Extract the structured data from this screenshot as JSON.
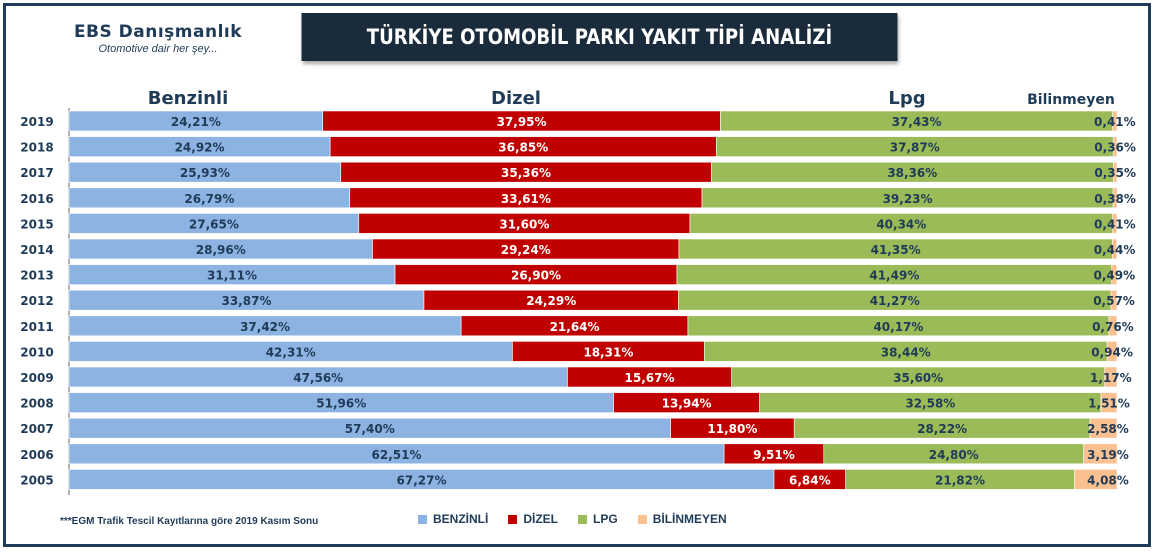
{
  "header": {
    "logo_name": "EBS Danışmanlık",
    "logo_tagline": "Otomotive dair her şey...",
    "title": "TÜRKİYE OTOMOBİL PARKI YAKIT TİPİ ANALİZİ"
  },
  "footnote": "***EGM Trafik Tescil Kayıtlarına göre 2019 Kasım Sonu",
  "colors": {
    "benzinli": "#8db3e2",
    "dizel": "#c00000",
    "lpg": "#9bbb59",
    "bilinmeyen": "#fac090",
    "title_bg": "#1a2b3c",
    "text": "#1f3b57"
  },
  "legend": [
    "BENZİNLİ",
    "DİZEL",
    "LPG",
    "BİLİNMEYEN"
  ],
  "chart_data": {
    "type": "bar",
    "orientation": "horizontal",
    "stacked": "100%",
    "title": "TÜRKİYE OTOMOBİL PARKI YAKIT TİPİ ANALİZİ",
    "column_headers": [
      "Benzinli",
      "Dizel",
      "Lpg",
      "Bilinmeyen"
    ],
    "categories": [
      "2019",
      "2018",
      "2017",
      "2016",
      "2015",
      "2014",
      "2013",
      "2012",
      "2011",
      "2010",
      "2009",
      "2008",
      "2007",
      "2006",
      "2005"
    ],
    "series": [
      {
        "name": "BENZİNLİ",
        "values": [
          24.21,
          24.92,
          25.93,
          26.79,
          27.65,
          28.96,
          31.11,
          33.87,
          37.42,
          42.31,
          47.56,
          51.96,
          57.4,
          62.51,
          67.27
        ],
        "labels": [
          "24,21%",
          "24,92%",
          "25,93%",
          "26,79%",
          "27,65%",
          "28,96%",
          "31,11%",
          "33,87%",
          "37,42%",
          "42,31%",
          "47,56%",
          "51,96%",
          "57,40%",
          "62,51%",
          "67,27%"
        ]
      },
      {
        "name": "DİZEL",
        "values": [
          37.95,
          36.85,
          35.36,
          33.61,
          31.6,
          29.24,
          26.9,
          24.29,
          21.64,
          18.31,
          15.67,
          13.94,
          11.8,
          9.51,
          6.84
        ],
        "labels": [
          "37,95%",
          "36,85%",
          "35,36%",
          "33,61%",
          "31,60%",
          "29,24%",
          "26,90%",
          "24,29%",
          "21,64%",
          "18,31%",
          "15,67%",
          "13,94%",
          "11,80%",
          "9,51%",
          "6,84%"
        ]
      },
      {
        "name": "LPG",
        "values": [
          37.43,
          37.87,
          38.36,
          39.23,
          40.34,
          41.35,
          41.49,
          41.27,
          40.17,
          38.44,
          35.6,
          32.58,
          28.22,
          24.8,
          21.82
        ],
        "labels": [
          "37,43%",
          "37,87%",
          "38,36%",
          "39,23%",
          "40,34%",
          "41,35%",
          "41,49%",
          "41,27%",
          "40,17%",
          "38,44%",
          "35,60%",
          "32,58%",
          "28,22%",
          "24,80%",
          "21,82%"
        ]
      },
      {
        "name": "BİLİNMEYEN",
        "values": [
          0.41,
          0.36,
          0.35,
          0.38,
          0.41,
          0.44,
          0.49,
          0.57,
          0.76,
          0.94,
          1.17,
          1.51,
          2.58,
          3.19,
          4.08
        ],
        "labels": [
          "0,41%",
          "0,36%",
          "0,35%",
          "0,38%",
          "0,41%",
          "0,44%",
          "0,49%",
          "0,57%",
          "0,76%",
          "0,94%",
          "1,17%",
          "1,51%",
          "2,58%",
          "3,19%",
          "4,08%"
        ]
      }
    ],
    "xlim": [
      0,
      100
    ],
    "grid": false,
    "legend_position": "bottom"
  }
}
